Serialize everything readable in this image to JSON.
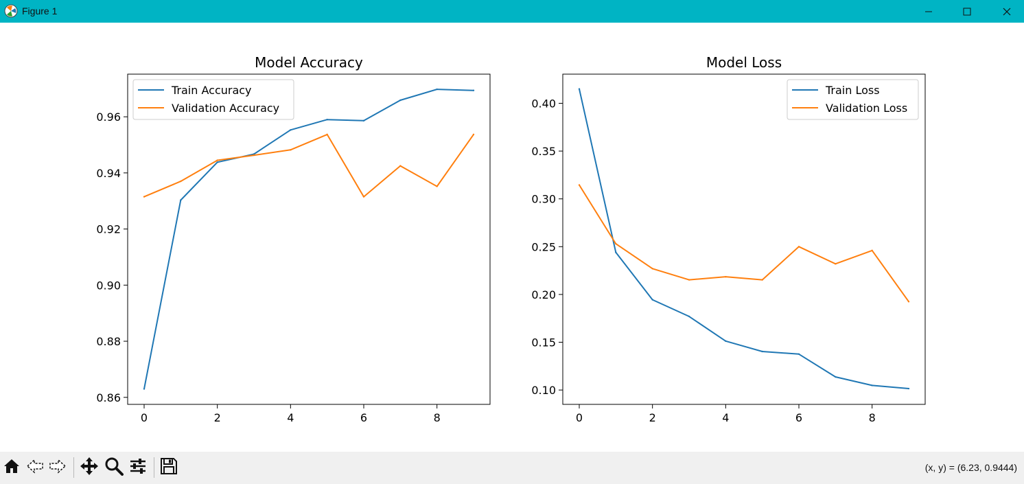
{
  "window": {
    "title": "Figure 1",
    "controls": [
      "minimize-icon",
      "maximize-icon",
      "close-icon"
    ]
  },
  "toolbar": {
    "buttons": [
      "home-icon",
      "back-icon",
      "forward-icon",
      "pan-icon",
      "zoom-icon",
      "configure-subplots-icon",
      "save-icon"
    ],
    "coords_text": "(x, y) = (6.23, 0.9444)"
  },
  "colors": {
    "titlebar": "#00b4c4",
    "train": "#1f77b4",
    "validation": "#ff7f0e"
  },
  "chart_data": [
    {
      "type": "line",
      "title": "Model Accuracy",
      "xlabel": "",
      "ylabel": "",
      "xlim": [
        -0.45,
        9.45
      ],
      "ylim": [
        0.8575,
        0.9752
      ],
      "xticks": [
        0,
        2,
        4,
        6,
        8
      ],
      "xtick_labels": [
        "0",
        "2",
        "4",
        "6",
        "8"
      ],
      "yticks": [
        0.86,
        0.88,
        0.9,
        0.92,
        0.94,
        0.96
      ],
      "ytick_labels": [
        "0.86",
        "0.88",
        "0.90",
        "0.92",
        "0.94",
        "0.96"
      ],
      "legend_position": "upper left",
      "grid": false,
      "x": [
        0,
        1,
        2,
        3,
        4,
        5,
        6,
        7,
        8,
        9
      ],
      "series": [
        {
          "name": "Train Accuracy",
          "color": "#1f77b4",
          "values": [
            0.863,
            0.9303,
            0.9438,
            0.9467,
            0.9553,
            0.959,
            0.9586,
            0.9659,
            0.9698,
            0.9694
          ]
        },
        {
          "name": "Validation Accuracy",
          "color": "#ff7f0e",
          "values": [
            0.9315,
            0.937,
            0.9445,
            0.9463,
            0.9482,
            0.9537,
            0.9315,
            0.9425,
            0.9352,
            0.9537
          ]
        }
      ]
    },
    {
      "type": "line",
      "title": "Model Loss",
      "xlabel": "",
      "ylabel": "",
      "xlim": [
        -0.45,
        9.45
      ],
      "ylim": [
        0.085,
        0.4305
      ],
      "xticks": [
        0,
        2,
        4,
        6,
        8
      ],
      "xtick_labels": [
        "0",
        "2",
        "4",
        "6",
        "8"
      ],
      "yticks": [
        0.1,
        0.15,
        0.2,
        0.25,
        0.3,
        0.35,
        0.4
      ],
      "ytick_labels": [
        "0.10",
        "0.15",
        "0.20",
        "0.25",
        "0.30",
        "0.35",
        "0.40"
      ],
      "legend_position": "upper right",
      "grid": false,
      "x": [
        0,
        1,
        2,
        3,
        4,
        5,
        6,
        7,
        8,
        9
      ],
      "series": [
        {
          "name": "Train Loss",
          "color": "#1f77b4",
          "values": [
            0.415,
            0.244,
            0.1945,
            0.177,
            0.1512,
            0.1403,
            0.1376,
            0.1137,
            0.1048,
            0.1015
          ]
        },
        {
          "name": "Validation Loss",
          "color": "#ff7f0e",
          "values": [
            0.3145,
            0.253,
            0.227,
            0.2153,
            0.2185,
            0.2153,
            0.25,
            0.232,
            0.246,
            0.1925
          ]
        }
      ]
    }
  ]
}
